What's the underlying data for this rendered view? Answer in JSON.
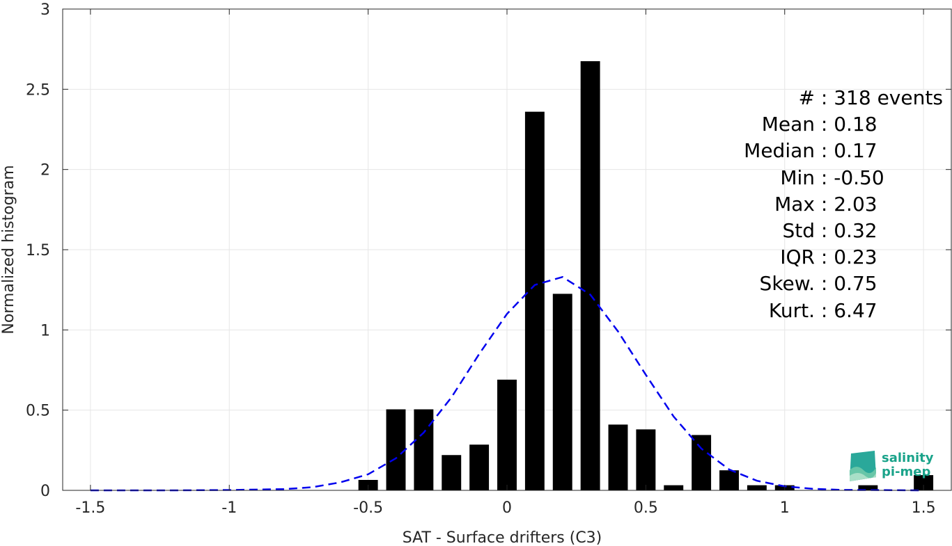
{
  "chart_data": {
    "type": "bar",
    "xlabel": "SAT - Surface drifters (C3)",
    "ylabel": "Normalized histogram",
    "xlim": [
      -1.6,
      1.6
    ],
    "ylim": [
      0,
      3
    ],
    "xticks": [
      -1.5,
      -1,
      -0.5,
      0,
      0.5,
      1,
      1.5
    ],
    "xtick_labels": [
      "-1.5",
      "-1",
      "-0.5",
      "0",
      "0.5",
      "1",
      "1.5"
    ],
    "yticks": [
      0,
      0.5,
      1,
      1.5,
      2,
      2.5,
      3
    ],
    "ytick_labels": [
      "0",
      "0.5",
      "1",
      "1.5",
      "2",
      "2.5",
      "3"
    ],
    "grid": true,
    "bar_width": 0.07,
    "bars": {
      "x": [
        -0.5,
        -0.4,
        -0.3,
        -0.2,
        -0.1,
        0.0,
        0.1,
        0.2,
        0.3,
        0.4,
        0.5,
        0.6,
        0.7,
        0.8,
        0.9,
        1.0,
        1.3,
        1.5
      ],
      "values": [
        0.065,
        0.505,
        0.505,
        0.22,
        0.285,
        0.69,
        2.36,
        1.225,
        2.675,
        0.41,
        0.38,
        0.032,
        0.345,
        0.125,
        0.032,
        0.032,
        0.032,
        0.095
      ],
      "color": "#000000"
    },
    "fit_curve": {
      "style": "dashed",
      "color": "#0000ee",
      "x": [
        -1.5,
        -1.2,
        -1.0,
        -0.8,
        -0.7,
        -0.6,
        -0.5,
        -0.4,
        -0.3,
        -0.2,
        -0.1,
        0.0,
        0.1,
        0.2,
        0.3,
        0.4,
        0.5,
        0.6,
        0.7,
        0.8,
        0.9,
        1.0,
        1.1,
        1.2,
        1.5
      ],
      "y": [
        0.0,
        0.0,
        0.002,
        0.008,
        0.02,
        0.05,
        0.1,
        0.2,
        0.36,
        0.58,
        0.85,
        1.1,
        1.28,
        1.33,
        1.22,
        0.99,
        0.72,
        0.46,
        0.26,
        0.13,
        0.06,
        0.025,
        0.01,
        0.003,
        0.0
      ]
    },
    "stats": [
      {
        "key": "#",
        "sep": " : ",
        "value": "318 events"
      },
      {
        "key": "Mean",
        "sep": " : ",
        "value": "0.18"
      },
      {
        "key": "Median",
        "sep": " : ",
        "value": "0.17"
      },
      {
        "key": "Min",
        "sep": " : ",
        "value": "-0.50"
      },
      {
        "key": "Max",
        "sep": " : ",
        "value": "2.03"
      },
      {
        "key": "Std",
        "sep": " : ",
        "value": "0.32"
      },
      {
        "key": "IQR",
        "sep": " : ",
        "value": "0.23"
      },
      {
        "key": "Skew.",
        "sep": " : ",
        "value": "0.75"
      },
      {
        "key": "Kurt.",
        "sep": " : ",
        "value": "6.47"
      }
    ]
  },
  "logo": {
    "line1": "salinity",
    "line2": "pi-mep",
    "color": "#1aa38a"
  }
}
